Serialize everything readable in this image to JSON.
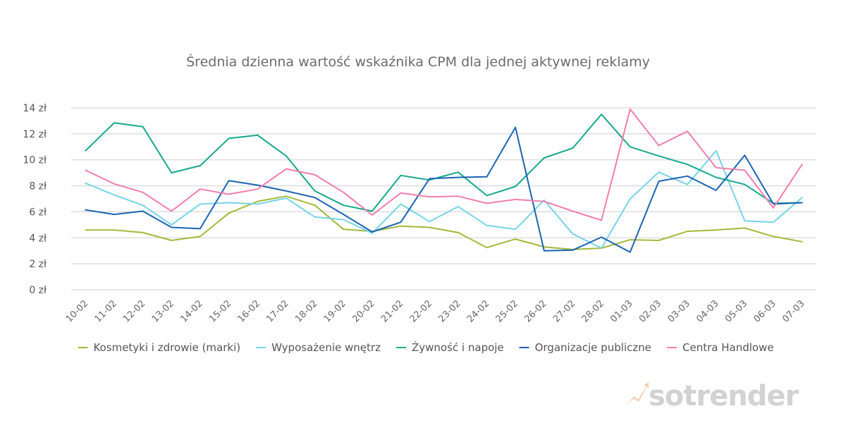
{
  "colors": {
    "grid": "#cfcfcf",
    "brand_text": "#d2d2d2",
    "brand_mark": "#f6c7a8"
  },
  "brand": {
    "name": "sotrender",
    "icon": "rising-arrow-icon"
  },
  "chart_data": {
    "type": "line",
    "title": "Średnia dzienna wartość wskaźnika CPM dla jednej aktywnej reklamy",
    "xlabel": "",
    "ylabel": "",
    "ylim": [
      0,
      14
    ],
    "y_ticks": [
      0,
      2,
      4,
      6,
      8,
      10,
      12,
      14
    ],
    "y_tick_suffix": " zł",
    "grid": true,
    "legend_position": "bottom",
    "categories": [
      "10-02",
      "11-02",
      "12-02",
      "13-02",
      "14-02",
      "15-02",
      "16-02",
      "17-02",
      "18-02",
      "19-02",
      "20-02",
      "21-02",
      "22-02",
      "23-02",
      "24-02",
      "25-02",
      "26-02",
      "27-02",
      "28-02",
      "01-03",
      "02-03",
      "03-03",
      "04-03",
      "05-03",
      "06-03",
      "07-03"
    ],
    "series": [
      {
        "name": "Kosmetyki i zdrowie (marki)",
        "color": "#a3b93a",
        "values": [
          4.6,
          4.6,
          4.4,
          3.8,
          4.1,
          5.9,
          6.8,
          7.2,
          6.5,
          4.65,
          4.5,
          4.9,
          4.8,
          4.4,
          3.25,
          3.9,
          3.3,
          3.1,
          3.2,
          3.85,
          3.8,
          4.5,
          4.6,
          4.75,
          4.1,
          3.7
        ]
      },
      {
        "name": "Wyposażenie wnętrz",
        "color": "#76d4ea",
        "values": [
          8.2,
          7.3,
          6.5,
          5.0,
          6.6,
          6.7,
          6.6,
          7.05,
          5.6,
          5.4,
          4.35,
          6.6,
          5.25,
          6.4,
          4.95,
          4.65,
          6.9,
          4.3,
          3.2,
          7.0,
          9.05,
          8.1,
          10.7,
          5.3,
          5.2,
          7.1
        ]
      },
      {
        "name": "Żywność i napoje",
        "color": "#15a88e",
        "values": [
          10.7,
          12.85,
          12.55,
          9.0,
          9.55,
          11.65,
          11.9,
          10.3,
          7.6,
          6.5,
          6.05,
          8.8,
          8.45,
          9.05,
          7.25,
          7.95,
          10.15,
          10.9,
          13.5,
          11.0,
          10.3,
          9.65,
          8.65,
          8.1,
          6.65,
          6.7
        ]
      },
      {
        "name": "Organizacje publiczne",
        "color": "#1b64b3",
        "values": [
          6.15,
          5.8,
          6.05,
          4.8,
          4.7,
          8.4,
          8.05,
          7.6,
          7.1,
          5.8,
          4.45,
          5.2,
          8.55,
          8.65,
          8.7,
          12.5,
          3.0,
          3.05,
          4.05,
          2.9,
          8.35,
          8.75,
          7.65,
          10.35,
          6.6,
          6.7
        ]
      },
      {
        "name": "Centra Handlowe",
        "color": "#f27eaa",
        "values": [
          9.2,
          8.15,
          7.5,
          6.05,
          7.75,
          7.35,
          7.75,
          9.3,
          8.85,
          7.5,
          5.75,
          7.45,
          7.15,
          7.2,
          6.65,
          6.95,
          6.8,
          6.05,
          5.35,
          13.9,
          11.1,
          12.2,
          9.4,
          9.2,
          6.3,
          9.65
        ]
      }
    ]
  }
}
